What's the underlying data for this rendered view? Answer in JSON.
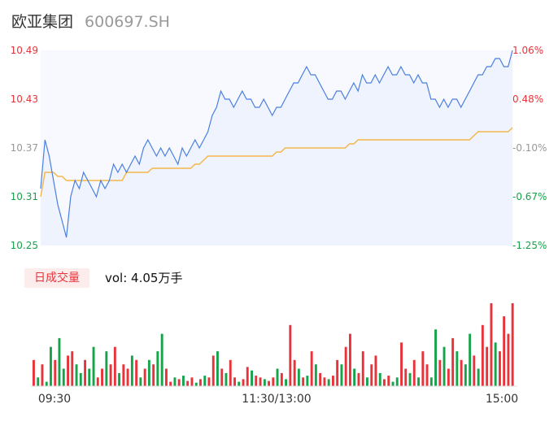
{
  "header": {
    "name": "欧亚集团",
    "code": "600697.SH"
  },
  "volume_tab": {
    "label": "日成交量",
    "vol_text": "vol: 4.05万手"
  },
  "colors": {
    "up": "#e8333a",
    "down": "#16a34a",
    "neutral": "#999999",
    "price_line": "#4a7fe0",
    "avg_line": "#f3b84a",
    "area_fill": "#eef3fd"
  },
  "chart_data": {
    "type": "line",
    "price_axis": {
      "min": 10.25,
      "max": 10.49,
      "ticks": [
        "10.49",
        "10.43",
        "10.37",
        "10.31",
        "10.25"
      ]
    },
    "pct_axis": {
      "ticks": [
        "1.06%",
        "0.48%",
        "-0.10%",
        "-0.67%",
        "-1.25%"
      ]
    },
    "x_labels": [
      "09:30",
      "11:30/13:00",
      "15:00"
    ],
    "series": [
      {
        "values": [
          10.32,
          10.38,
          10.36,
          10.33,
          10.3,
          10.28,
          10.26,
          10.31,
          10.33,
          10.32,
          10.34,
          10.33,
          10.32,
          10.31,
          10.33,
          10.32,
          10.33,
          10.35,
          10.34,
          10.35,
          10.34,
          10.35,
          10.36,
          10.35,
          10.37,
          10.38,
          10.37,
          10.36,
          10.37,
          10.36,
          10.37,
          10.36,
          10.35,
          10.37,
          10.36,
          10.37,
          10.38,
          10.37,
          10.38,
          10.39,
          10.41,
          10.42,
          10.44,
          10.43,
          10.43,
          10.42,
          10.43,
          10.44,
          10.43,
          10.43,
          10.42,
          10.42,
          10.43,
          10.42,
          10.41,
          10.42,
          10.42,
          10.43,
          10.44,
          10.45,
          10.45,
          10.46,
          10.47,
          10.46,
          10.46,
          10.45,
          10.44,
          10.43,
          10.43,
          10.44,
          10.44,
          10.43,
          10.44,
          10.45,
          10.44,
          10.46,
          10.45,
          10.45,
          10.46,
          10.45,
          10.46,
          10.47,
          10.46,
          10.46,
          10.47,
          10.46,
          10.46,
          10.45,
          10.46,
          10.45,
          10.45,
          10.43,
          10.43,
          10.42,
          10.43,
          10.42,
          10.43,
          10.43,
          10.42,
          10.43,
          10.44,
          10.45,
          10.46,
          10.46,
          10.47,
          10.47,
          10.48,
          10.48,
          10.47,
          10.47,
          10.49
        ],
        "color": "#4a7fe0"
      },
      {
        "values": [
          10.31,
          10.34,
          10.34,
          10.34,
          10.335,
          10.335,
          10.33,
          10.33,
          10.33,
          10.33,
          10.33,
          10.33,
          10.33,
          10.33,
          10.33,
          10.33,
          10.33,
          10.33,
          10.33,
          10.33,
          10.34,
          10.34,
          10.34,
          10.34,
          10.34,
          10.34,
          10.345,
          10.345,
          10.345,
          10.345,
          10.345,
          10.345,
          10.345,
          10.345,
          10.345,
          10.345,
          10.35,
          10.35,
          10.355,
          10.36,
          10.36,
          10.36,
          10.36,
          10.36,
          10.36,
          10.36,
          10.36,
          10.36,
          10.36,
          10.36,
          10.36,
          10.36,
          10.36,
          10.36,
          10.36,
          10.365,
          10.365,
          10.37,
          10.37,
          10.37,
          10.37,
          10.37,
          10.37,
          10.37,
          10.37,
          10.37,
          10.37,
          10.37,
          10.37,
          10.37,
          10.37,
          10.37,
          10.375,
          10.375,
          10.38,
          10.38,
          10.38,
          10.38,
          10.38,
          10.38,
          10.38,
          10.38,
          10.38,
          10.38,
          10.38,
          10.38,
          10.38,
          10.38,
          10.38,
          10.38,
          10.38,
          10.38,
          10.38,
          10.38,
          10.38,
          10.38,
          10.38,
          10.38,
          10.38,
          10.38,
          10.38,
          10.385,
          10.39,
          10.39,
          10.39,
          10.39,
          10.39,
          10.39,
          10.39,
          10.39,
          10.395
        ],
        "color": "#f3b84a"
      }
    ],
    "volume": {
      "values": [
        30,
        10,
        25,
        5,
        45,
        30,
        55,
        20,
        35,
        40,
        25,
        15,
        30,
        20,
        45,
        10,
        20,
        40,
        25,
        45,
        15,
        25,
        20,
        35,
        30,
        10,
        20,
        30,
        25,
        40,
        60,
        20,
        5,
        10,
        8,
        12,
        6,
        10,
        4,
        8,
        12,
        10,
        35,
        40,
        20,
        15,
        30,
        10,
        5,
        8,
        22,
        18,
        12,
        10,
        8,
        6,
        10,
        20,
        15,
        8,
        70,
        30,
        20,
        10,
        12,
        40,
        25,
        15,
        10,
        8,
        12,
        30,
        25,
        45,
        60,
        20,
        15,
        40,
        10,
        25,
        35,
        15,
        8,
        12,
        5,
        10,
        50,
        20,
        15,
        30,
        10,
        40,
        25,
        10,
        65,
        30,
        45,
        20,
        55,
        40,
        30,
        25,
        60,
        35,
        20,
        70,
        45,
        95,
        50,
        40,
        80,
        60,
        95
      ],
      "colors": [
        "#e8333a",
        "#16a34a",
        "#e8333a",
        "#16a34a",
        "#16a34a",
        "#e8333a",
        "#16a34a",
        "#16a34a",
        "#e8333a",
        "#e8333a",
        "#16a34a",
        "#16a34a",
        "#e8333a",
        "#16a34a",
        "#16a34a",
        "#e8333a",
        "#e8333a",
        "#16a34a",
        "#e8333a",
        "#e8333a",
        "#16a34a",
        "#e8333a",
        "#e8333a",
        "#16a34a",
        "#e8333a",
        "#16a34a",
        "#e8333a",
        "#16a34a",
        "#e8333a",
        "#16a34a",
        "#16a34a",
        "#e8333a",
        "#e8333a",
        "#16a34a",
        "#e8333a",
        "#16a34a",
        "#e8333a",
        "#e8333a",
        "#16a34a",
        "#e8333a",
        "#16a34a",
        "#e8333a",
        "#e8333a",
        "#16a34a",
        "#e8333a",
        "#16a34a",
        "#e8333a",
        "#e8333a",
        "#16a34a",
        "#e8333a",
        "#e8333a",
        "#16a34a",
        "#e8333a",
        "#e8333a",
        "#16a34a",
        "#e8333a",
        "#e8333a",
        "#16a34a",
        "#e8333a",
        "#16a34a",
        "#e8333a",
        "#e8333a",
        "#16a34a",
        "#e8333a",
        "#16a34a",
        "#e8333a",
        "#16a34a",
        "#e8333a",
        "#e8333a",
        "#16a34a",
        "#e8333a",
        "#e8333a",
        "#16a34a",
        "#e8333a",
        "#e8333a",
        "#16a34a",
        "#e8333a",
        "#e8333a",
        "#16a34a",
        "#e8333a",
        "#e8333a",
        "#16a34a",
        "#e8333a",
        "#e8333a",
        "#16a34a",
        "#16a34a",
        "#e8333a",
        "#e8333a",
        "#16a34a",
        "#e8333a",
        "#16a34a",
        "#e8333a",
        "#e8333a",
        "#16a34a",
        "#16a34a",
        "#e8333a",
        "#16a34a",
        "#e8333a",
        "#e8333a",
        "#16a34a",
        "#e8333a",
        "#16a34a",
        "#16a34a",
        "#e8333a",
        "#16a34a",
        "#e8333a",
        "#e8333a",
        "#e8333a",
        "#16a34a",
        "#e8333a",
        "#e8333a",
        "#e8333a",
        "#e8333a"
      ]
    }
  }
}
